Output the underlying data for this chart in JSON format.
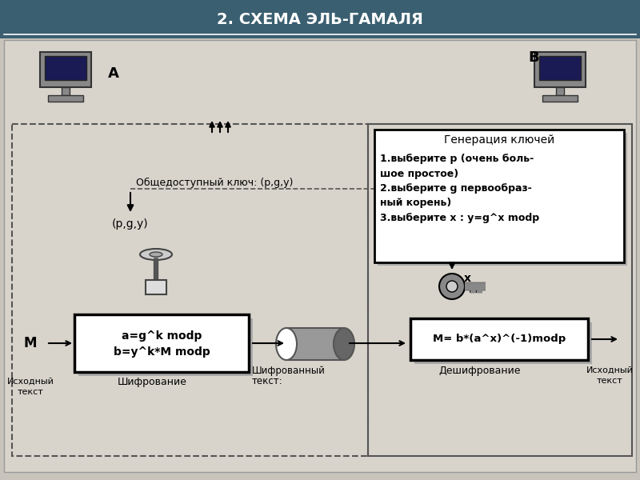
{
  "title": "2. СХЕМА ЭЛЬ-ГАМАЛЯ",
  "title_bg_top": "#4a7080",
  "title_bg_bot": "#2a4050",
  "title_color": "white",
  "bg_color": "#c8c4bc",
  "key_gen_title": "Генерация ключей",
  "key_gen_text": "1.выберите p (очень боль-\nшое простое)\n2.выберите g первообраз-\nный корень)\n3.выберите x : y=g^x modp",
  "public_key_label": "Общедоступный ключ: (p,g,y)",
  "pgy_label": "(p,g,y)",
  "encrypt_formula": "a=g^k modp\nb=y^k*M modp",
  "decrypt_formula": "M= b*(a^x)^(-1)modp",
  "label_A": "A",
  "label_B": "B",
  "label_M_input": "M",
  "label_source_text_left1": "Исходный",
  "label_source_text_left2": "текст",
  "label_encrypt": "Шифрование",
  "label_decrypt": "Дешифрование",
  "label_source_text_right1": "Исходный",
  "label_source_text_right2": "текст",
  "label_encrypted1": "Шифрованный",
  "label_encrypted2": "текст:",
  "label_x": "x"
}
